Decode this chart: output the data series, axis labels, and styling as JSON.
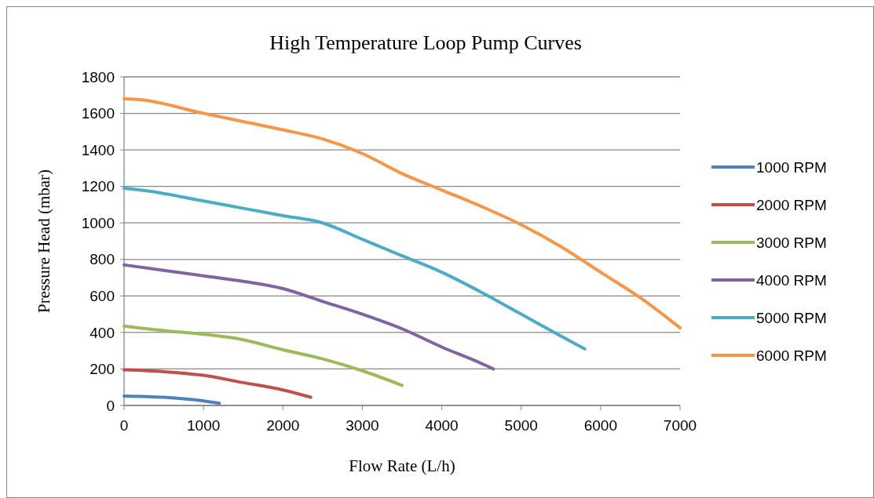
{
  "chart_data": {
    "type": "line",
    "title": "High Temperature Loop Pump Curves",
    "xlabel": "Flow Rate (L/h)",
    "ylabel": "Pressure Head (mbar)",
    "xlim": [
      0,
      7000
    ],
    "xticks": [
      0,
      1000,
      2000,
      3000,
      4000,
      5000,
      6000,
      7000
    ],
    "ylim": [
      0,
      1800
    ],
    "yticks": [
      0,
      200,
      400,
      600,
      800,
      1000,
      1200,
      1400,
      1600,
      1800
    ],
    "grid": "y",
    "legend": "right",
    "marker": "none",
    "line_style": "solid",
    "series": [
      {
        "name": "1000 RPM",
        "color": "#4f81bd",
        "x": [
          0,
          500,
          1000,
          1200
        ],
        "values": [
          52,
          45,
          25,
          12
        ]
      },
      {
        "name": "2000 RPM",
        "color": "#c0504d",
        "x": [
          0,
          500,
          1000,
          1500,
          2000,
          2350
        ],
        "values": [
          195,
          185,
          165,
          125,
          85,
          45
        ]
      },
      {
        "name": "3000 RPM",
        "color": "#9bbb59",
        "x": [
          0,
          500,
          1000,
          1500,
          2000,
          2500,
          3000,
          3500
        ],
        "values": [
          435,
          410,
          390,
          360,
          305,
          255,
          190,
          110
        ]
      },
      {
        "name": "4000 RPM",
        "color": "#8064a2",
        "x": [
          0,
          500,
          1000,
          1500,
          2000,
          2500,
          3000,
          3500,
          4000,
          4500,
          4650
        ],
        "values": [
          770,
          740,
          710,
          680,
          640,
          570,
          500,
          420,
          320,
          230,
          200
        ]
      },
      {
        "name": "5000 RPM",
        "color": "#4bacc6",
        "x": [
          0,
          300,
          1000,
          1500,
          2000,
          2500,
          3000,
          3500,
          4000,
          4500,
          5000,
          5500,
          5800
        ],
        "values": [
          1190,
          1175,
          1120,
          1080,
          1040,
          1000,
          910,
          820,
          730,
          620,
          500,
          380,
          310
        ]
      },
      {
        "name": "6000 RPM",
        "color": "#f79646",
        "x": [
          0,
          200,
          1000,
          1500,
          2000,
          2500,
          3000,
          3500,
          4000,
          4500,
          5000,
          5500,
          6000,
          6500,
          7000
        ],
        "values": [
          1680,
          1675,
          1600,
          1555,
          1510,
          1460,
          1380,
          1270,
          1180,
          1090,
          990,
          870,
          730,
          590,
          425
        ]
      }
    ]
  }
}
